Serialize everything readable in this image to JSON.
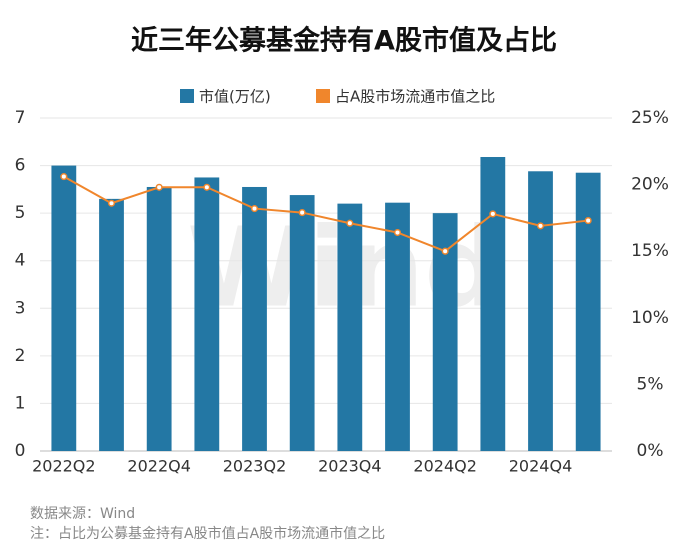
{
  "chart_data": {
    "type": "bar_line",
    "title": "近三年公募基金持有A股市值及占比",
    "watermark": "Wind",
    "source": "数据来源：Wind",
    "note": "注：占比为公募基金持有A股市值占A股市场流通市值之比",
    "categories": [
      "2022Q2",
      null,
      "2022Q4",
      null,
      "2023Q2",
      null,
      "2023Q4",
      null,
      "2024Q2",
      null,
      "2024Q4",
      null
    ],
    "series": [
      {
        "name": "市值(万亿)",
        "color": "#2377a4",
        "type": "bar",
        "values": [
          6.0,
          5.3,
          5.55,
          5.75,
          5.55,
          5.38,
          5.2,
          5.22,
          5.0,
          6.18,
          5.88,
          5.85
        ]
      },
      {
        "name": "占A股市场流通市值之比",
        "color": "#f0862c",
        "type": "line",
        "axis": "y2",
        "values": [
          20.6,
          18.6,
          19.8,
          19.8,
          18.2,
          17.9,
          17.1,
          16.4,
          15.0,
          17.8,
          16.9,
          17.3
        ]
      }
    ],
    "ylim": [
      0,
      7
    ],
    "yticks": [
      0,
      1,
      2,
      3,
      4,
      5,
      6,
      7
    ],
    "y2lim": [
      0,
      25
    ],
    "y2ticks": [
      {
        "value": 0,
        "label": "0%"
      },
      {
        "value": 5,
        "label": "5%"
      },
      {
        "value": 10,
        "label": "10%"
      },
      {
        "value": 15,
        "label": "15%"
      },
      {
        "value": 20,
        "label": "20%"
      },
      {
        "value": 25,
        "label": "25%"
      }
    ],
    "grid": true
  }
}
